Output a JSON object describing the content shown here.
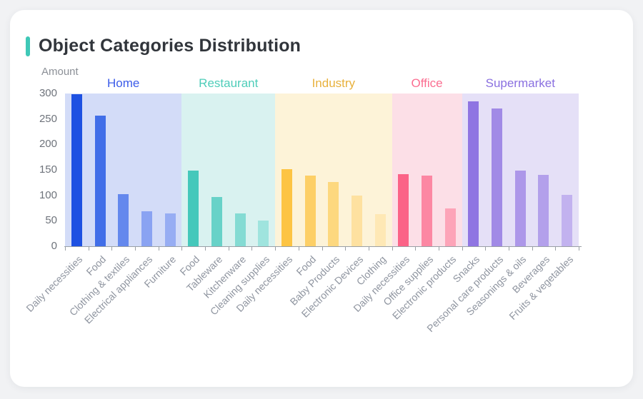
{
  "card": {
    "title": "Object Categories Distribution",
    "accent_color": "#3fc8b7"
  },
  "chart_data": {
    "type": "bar",
    "title": "Object Categories Distribution",
    "xlabel": "",
    "ylabel": "Amount",
    "ylim": [
      0,
      300
    ],
    "yticks": [
      300,
      250,
      200,
      150,
      100,
      50,
      0
    ],
    "grid": false,
    "legend_position": "inline-top-group-labels",
    "axis_color": "#9aa0a6",
    "groups": [
      {
        "name": "Home",
        "label_color": "#3c5ce9",
        "band_color": "#d3dcf8",
        "categories": [
          "Daily necessities",
          "Food",
          "Clothing & textiles",
          "Electrical appliances",
          "Furniture"
        ],
        "values": [
          298,
          257,
          102,
          69,
          64
        ],
        "bar_colors": [
          "#1e51e2",
          "#416ee8",
          "#6488ed",
          "#8aa3f2",
          "#97adf3"
        ]
      },
      {
        "name": "Restaurant",
        "label_color": "#4ecdb9",
        "band_color": "#d9f2f0",
        "categories": [
          "Food",
          "Tableware",
          "Kitchenware",
          "Cleaning supplies"
        ],
        "values": [
          149,
          97,
          65,
          51
        ],
        "bar_colors": [
          "#45c8bb",
          "#68d2c8",
          "#84dbd3",
          "#9fe4de"
        ]
      },
      {
        "name": "Industry",
        "label_color": "#e8b13c",
        "band_color": "#fdf3d8",
        "categories": [
          "Daily necessities",
          "Food",
          "Baby Products",
          "Electronic Devices",
          "Clothing"
        ],
        "values": [
          151,
          139,
          126,
          100,
          63
        ],
        "bar_colors": [
          "#fdc443",
          "#fdcf66",
          "#fdd87f",
          "#fee1a0",
          "#fee8b5"
        ]
      },
      {
        "name": "Office",
        "label_color": "#fb6e91",
        "band_color": "#fcdfe7",
        "categories": [
          "Daily necessities",
          "Office supplies",
          "Electronic products"
        ],
        "values": [
          142,
          139,
          75
        ],
        "bar_colors": [
          "#fb6387",
          "#fc87a3",
          "#fda4b8"
        ]
      },
      {
        "name": "Supermarket",
        "label_color": "#8a70e0",
        "band_color": "#e5e0f7",
        "categories": [
          "Snacks",
          "Personal care products",
          "Seasonings & oils",
          "Beverages",
          "Fruits & vegetables"
        ],
        "values": [
          285,
          271,
          148,
          140,
          101
        ],
        "bar_colors": [
          "#8f75e2",
          "#a18ae6",
          "#ad97e9",
          "#b3a0eb",
          "#c2b2ef"
        ]
      }
    ]
  }
}
